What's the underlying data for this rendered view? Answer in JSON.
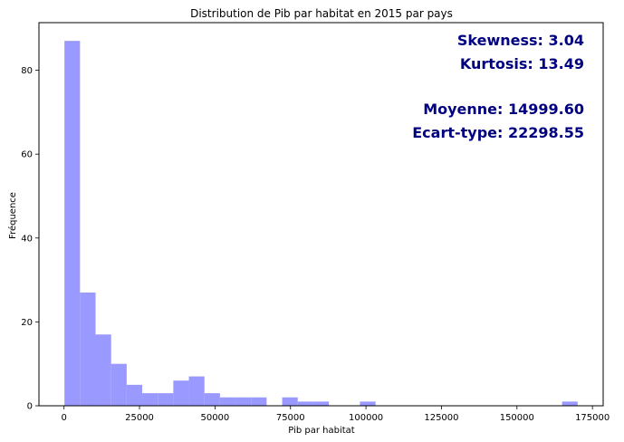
{
  "chart_data": {
    "type": "bar",
    "title": "Distribution de Pib par habitat en 2015 par pays",
    "xlabel": "Pib par habitat",
    "ylabel": "Fréquence",
    "bin_width": 5150,
    "bins": [
      {
        "start": 150,
        "end": 5300,
        "count": 87
      },
      {
        "start": 5300,
        "end": 10450,
        "count": 27
      },
      {
        "start": 10450,
        "end": 15600,
        "count": 17
      },
      {
        "start": 15600,
        "end": 20750,
        "count": 10
      },
      {
        "start": 20750,
        "end": 25900,
        "count": 5
      },
      {
        "start": 25900,
        "end": 31050,
        "count": 3
      },
      {
        "start": 31050,
        "end": 36200,
        "count": 3
      },
      {
        "start": 36200,
        "end": 41350,
        "count": 6
      },
      {
        "start": 41350,
        "end": 46500,
        "count": 7
      },
      {
        "start": 46500,
        "end": 51650,
        "count": 3
      },
      {
        "start": 51650,
        "end": 56800,
        "count": 2
      },
      {
        "start": 56800,
        "end": 61950,
        "count": 2
      },
      {
        "start": 61950,
        "end": 67100,
        "count": 2
      },
      {
        "start": 67100,
        "end": 72250,
        "count": 0
      },
      {
        "start": 72250,
        "end": 77400,
        "count": 2
      },
      {
        "start": 77400,
        "end": 82550,
        "count": 1
      },
      {
        "start": 82550,
        "end": 87700,
        "count": 1
      },
      {
        "start": 87700,
        "end": 92850,
        "count": 0
      },
      {
        "start": 92850,
        "end": 98000,
        "count": 0
      },
      {
        "start": 98000,
        "end": 103150,
        "count": 1
      },
      {
        "start": 103150,
        "end": 108300,
        "count": 0
      },
      {
        "start": 108300,
        "end": 113450,
        "count": 0
      },
      {
        "start": 113450,
        "end": 118600,
        "count": 0
      },
      {
        "start": 118600,
        "end": 123750,
        "count": 0
      },
      {
        "start": 123750,
        "end": 128900,
        "count": 0
      },
      {
        "start": 128900,
        "end": 134050,
        "count": 0
      },
      {
        "start": 134050,
        "end": 139200,
        "count": 0
      },
      {
        "start": 139200,
        "end": 144350,
        "count": 0
      },
      {
        "start": 144350,
        "end": 149500,
        "count": 0
      },
      {
        "start": 149500,
        "end": 154650,
        "count": 0
      },
      {
        "start": 154650,
        "end": 159800,
        "count": 0
      },
      {
        "start": 159800,
        "end": 164950,
        "count": 0
      },
      {
        "start": 164950,
        "end": 170100,
        "count": 1
      }
    ],
    "xlim": [
      -8300,
      178550
    ],
    "ylim": [
      0,
      91.35
    ],
    "xticks": [
      0,
      25000,
      50000,
      75000,
      100000,
      125000,
      150000,
      175000
    ],
    "yticks": [
      0,
      20,
      40,
      60,
      80
    ],
    "bar_color": "#9999ff",
    "grid": false,
    "annotations": [
      "Skewness: 3.04",
      "Kurtosis: 13.49",
      "Moyenne: 14999.60",
      "Ecart-type: 22298.55"
    ],
    "annotation_color": "#000080"
  }
}
